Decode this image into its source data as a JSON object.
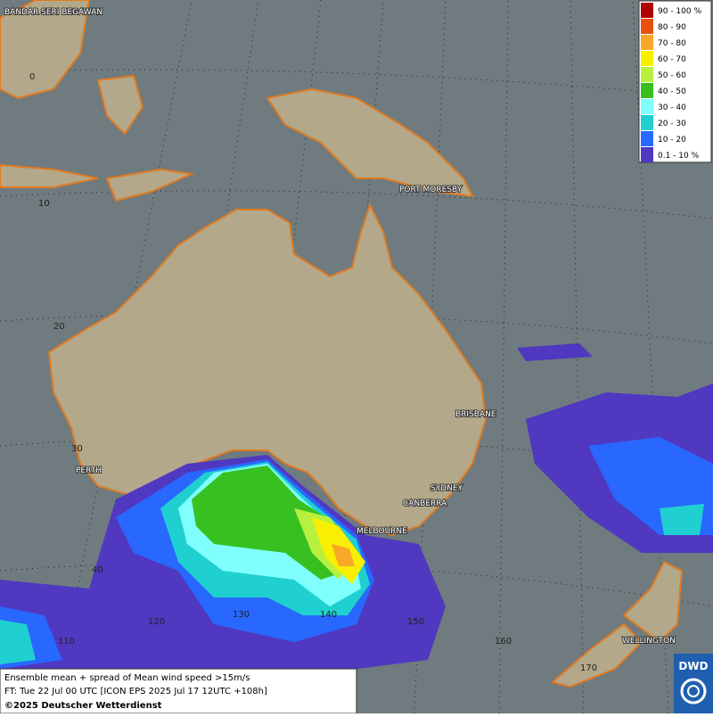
{
  "places": [
    "BANDAR SERI BEGAWAN",
    "PORT MORESBY",
    "BRISBANE",
    "PERTH",
    "SYDNEY",
    "CANBERRA",
    "MELBOURNE",
    "WELLINGTON"
  ],
  "grid_labels": [
    "0",
    "10",
    "20",
    "30",
    "40",
    "110",
    "120",
    "130",
    "140",
    "150",
    "160",
    "170"
  ],
  "legend": [
    {
      "label": "90 - 100 %",
      "color": "#b00000"
    },
    {
      "label": "80 - 90",
      "color": "#e85010"
    },
    {
      "label": "70 - 80",
      "color": "#f8a828"
    },
    {
      "label": "60 - 70",
      "color": "#f8f000"
    },
    {
      "label": "50 - 60",
      "color": "#b8f040"
    },
    {
      "label": "40 - 50",
      "color": "#38c020"
    },
    {
      "label": "30 - 40",
      "color": "#80ffff"
    },
    {
      "label": "20 - 30",
      "color": "#20d0d0"
    },
    {
      "label": "10 - 20",
      "color": "#2868ff"
    },
    {
      "label": "0.1 - 10 %",
      "color": "#5038c0"
    }
  ],
  "footer": {
    "line1": "Ensemble mean + spread of Mean wind speed >15m/s",
    "line2": "FT: Tue 22 Jul 00 UTC [ICON EPS 2025 Jul 17 12UTC +108h]",
    "line3": "©2025 Deutscher Wetterdienst"
  },
  "logo": "DWD"
}
